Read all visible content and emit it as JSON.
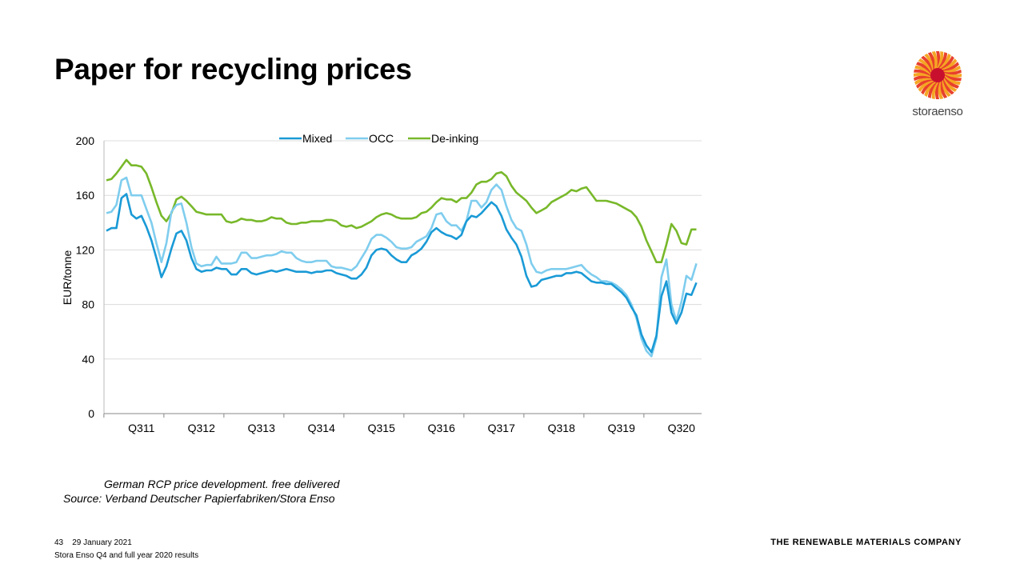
{
  "title": "Paper for recycling prices",
  "logo": {
    "text": "storaenso",
    "colors": [
      "#f5a623",
      "#e8412c",
      "#c8102e"
    ]
  },
  "notes": {
    "line1": "German RCP price development. free delivered",
    "line2": "Source:  Verband Deutscher Papierfabriken/Stora Enso"
  },
  "footer": {
    "page": "43",
    "date": "29 January 2021",
    "subtitle": "Stora Enso Q4 and full year 2020 results",
    "tagline": "THE RENEWABLE MATERIALS COMPANY"
  },
  "chart_data": {
    "type": "line",
    "ylabel": "EUR/tonne",
    "xlabel": "",
    "ylim": [
      0,
      200
    ],
    "yticks": [
      0,
      40,
      80,
      120,
      160,
      200
    ],
    "xtick_labels": [
      "Q311",
      "Q312",
      "Q313",
      "Q314",
      "Q315",
      "Q316",
      "Q317",
      "Q318",
      "Q319",
      "Q320"
    ],
    "x_period": "monthly, Jan 2011 - Nov 2020",
    "grid": true,
    "legend": "top",
    "series": [
      {
        "name": "Mixed",
        "color": "#1a9ad6",
        "values": [
          134,
          136,
          136,
          158,
          161,
          146,
          143,
          145,
          137,
          127,
          114,
          100,
          108,
          121,
          132,
          134,
          127,
          114,
          106,
          104,
          105,
          105,
          107,
          106,
          106,
          102,
          102,
          106,
          106,
          103,
          102,
          103,
          104,
          105,
          104,
          105,
          106,
          105,
          104,
          104,
          104,
          103,
          104,
          104,
          105,
          105,
          103,
          102,
          101,
          99,
          99,
          102,
          107,
          116,
          120,
          121,
          120,
          116,
          113,
          111,
          111,
          116,
          118,
          121,
          126,
          133,
          136,
          133,
          131,
          130,
          128,
          131,
          141,
          145,
          144,
          147,
          151,
          155,
          152,
          145,
          135,
          129,
          124,
          115,
          101,
          93,
          94,
          98,
          99,
          100,
          101,
          101,
          103,
          103,
          104,
          103,
          100,
          97,
          96,
          96,
          95,
          95,
          92,
          89,
          85,
          78,
          72,
          58,
          50,
          45,
          57,
          86,
          97,
          74,
          66,
          74,
          88,
          87,
          96
        ]
      },
      {
        "name": "OCC",
        "color": "#7fcdee",
        "values": [
          147,
          148,
          153,
          171,
          173,
          160,
          160,
          160,
          150,
          140,
          125,
          111,
          125,
          148,
          153,
          154,
          140,
          122,
          110,
          108,
          109,
          109,
          115,
          110,
          110,
          110,
          111,
          118,
          118,
          114,
          114,
          115,
          116,
          116,
          117,
          119,
          118,
          118,
          114,
          112,
          111,
          111,
          112,
          112,
          112,
          108,
          107,
          107,
          106,
          105,
          108,
          114,
          120,
          128,
          131,
          131,
          129,
          126,
          122,
          121,
          121,
          122,
          126,
          128,
          130,
          136,
          146,
          147,
          141,
          138,
          138,
          134,
          141,
          156,
          156,
          151,
          155,
          164,
          168,
          164,
          152,
          142,
          136,
          134,
          124,
          110,
          104,
          103,
          105,
          106,
          106,
          106,
          106,
          107,
          108,
          109,
          105,
          102,
          100,
          97,
          97,
          96,
          94,
          91,
          87,
          80,
          70,
          55,
          46,
          42,
          55,
          100,
          113,
          80,
          68,
          82,
          101,
          98,
          110
        ]
      },
      {
        "name": "De-inking",
        "color": "#78b82a",
        "values": [
          171,
          172,
          176,
          181,
          186,
          182,
          182,
          181,
          176,
          166,
          155,
          145,
          141,
          147,
          157,
          159,
          156,
          152,
          148,
          147,
          146,
          146,
          146,
          146,
          141,
          140,
          141,
          143,
          142,
          142,
          141,
          141,
          142,
          144,
          143,
          143,
          140,
          139,
          139,
          140,
          140,
          141,
          141,
          141,
          142,
          142,
          141,
          138,
          137,
          138,
          136,
          137,
          139,
          141,
          144,
          146,
          147,
          146,
          144,
          143,
          143,
          143,
          144,
          147,
          148,
          151,
          155,
          158,
          157,
          157,
          155,
          158,
          158,
          162,
          168,
          170,
          170,
          172,
          176,
          177,
          174,
          167,
          162,
          159,
          156,
          151,
          147,
          149,
          151,
          155,
          157,
          159,
          161,
          164,
          163,
          165,
          166,
          161,
          156,
          156,
          156,
          155,
          154,
          152,
          150,
          148,
          144,
          137,
          127,
          119,
          111,
          111,
          124,
          139,
          134,
          125,
          124,
          135,
          135
        ]
      }
    ]
  }
}
